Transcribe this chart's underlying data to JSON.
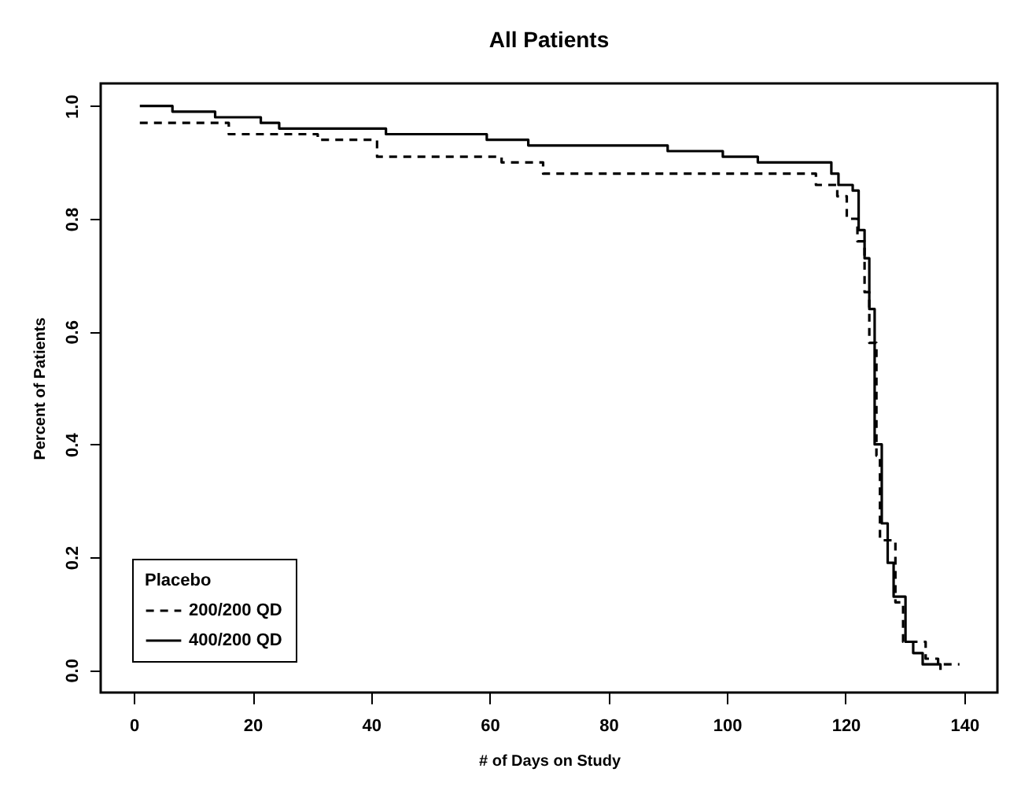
{
  "chart_data": {
    "type": "step",
    "title": "All Patients",
    "xlabel": "# of Days on Study",
    "ylabel": "Percent of Patients",
    "legend_title": "Placebo",
    "legend": "bottom left",
    "xlim": [
      -5.6,
      145.6
    ],
    "xticks": [
      0,
      20,
      40,
      60,
      80,
      100,
      120,
      140
    ],
    "ylim": [
      -0.04,
      1.04
    ],
    "yticks": [
      {
        "value": 0,
        "label": "0.0"
      },
      0.2,
      0.4,
      0.6,
      0.8,
      {
        "value": 1,
        "label": "1.0"
      }
    ],
    "series": [
      {
        "name": "200/200 QD",
        "color": "#000000",
        "line_style": "dashed",
        "x": [
          1,
          16,
          31,
          41,
          62,
          69,
          115,
          118.6,
          120.2,
          122,
          123.2,
          124,
          125.2,
          125.8,
          128.4,
          129.7,
          133.5,
          135.6,
          139.2
        ],
        "values": [
          0.97,
          0.95,
          0.94,
          0.91,
          0.9,
          0.88,
          0.86,
          0.84,
          0.8,
          0.76,
          0.67,
          0.58,
          0.38,
          0.23,
          0.12,
          0.05,
          0.02,
          0.01,
          0.01
        ]
      },
      {
        "name": "400/200 QD",
        "color": "#000000",
        "line_style": "solid",
        "x": [
          1,
          6.5,
          13.7,
          21.4,
          24.5,
          42.5,
          59.5,
          66.5,
          90,
          99.3,
          105.2,
          117.6,
          118.8,
          121.2,
          122.2,
          123.2,
          124,
          124.9,
          126.1,
          127.1,
          128.1,
          130.1,
          131.4,
          133,
          136
        ],
        "values": [
          1.0,
          0.99,
          0.98,
          0.97,
          0.96,
          0.95,
          0.94,
          0.93,
          0.92,
          0.91,
          0.9,
          0.88,
          0.86,
          0.85,
          0.78,
          0.73,
          0.64,
          0.4,
          0.26,
          0.19,
          0.13,
          0.05,
          0.03,
          0.01,
          0.0
        ]
      }
    ]
  }
}
